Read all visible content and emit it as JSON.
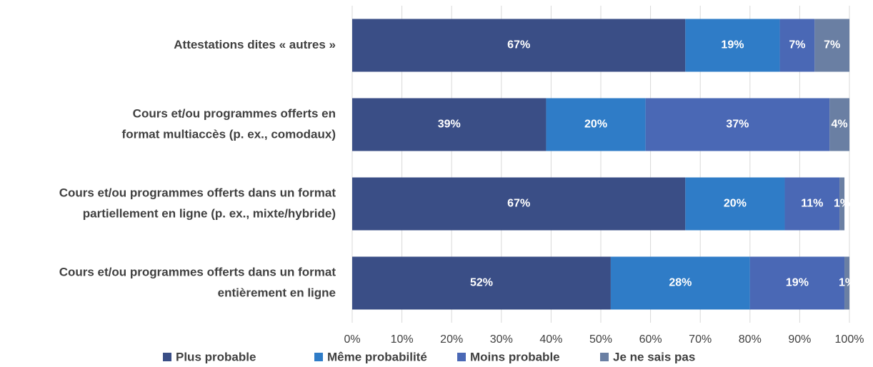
{
  "chart_data": {
    "type": "stacked-barh",
    "categories": [
      [
        "Attestations dites « autres »"
      ],
      [
        "Cours et/ou programmes offerts en",
        "format multiaccès (p. ex., comodaux)"
      ],
      [
        "Cours et/ou programmes offerts dans un format",
        "partiellement en ligne (p. ex., mixte/hybride)"
      ],
      [
        "Cours et/ou programmes offerts dans un format",
        "entièrement en ligne"
      ]
    ],
    "series": [
      {
        "name": "Plus probable",
        "color": "#3a4e86",
        "values": [
          67,
          39,
          67,
          52
        ],
        "value_labels": [
          "67%",
          "39%",
          "67%",
          "52%"
        ]
      },
      {
        "name": "Même probabilité",
        "color": "#2f7cc7",
        "values": [
          19,
          20,
          20,
          28
        ],
        "value_labels": [
          "19%",
          "20%",
          "20%",
          "28%"
        ]
      },
      {
        "name": "Moins probable",
        "color": "#4a68b5",
        "values": [
          7,
          37,
          11,
          19
        ],
        "value_labels": [
          "7%",
          "37%",
          "11%",
          "19%"
        ]
      },
      {
        "name": "Je ne sais pas",
        "color": "#6a7fa3",
        "values": [
          7,
          4,
          1,
          1
        ],
        "value_labels": [
          "7%",
          "4%",
          "1%",
          "1%"
        ]
      }
    ],
    "xlim": [
      0,
      100
    ],
    "xticks": [
      {
        "value": 0,
        "label": "0%"
      },
      {
        "value": 10,
        "label": "10%"
      },
      {
        "value": 20,
        "label": "20%"
      },
      {
        "value": 30,
        "label": "30%"
      },
      {
        "value": 40,
        "label": "40%"
      },
      {
        "value": 50,
        "label": "50%"
      },
      {
        "value": 60,
        "label": "60%"
      },
      {
        "value": 70,
        "label": "70%"
      },
      {
        "value": 80,
        "label": "80%"
      },
      {
        "value": 90,
        "label": "90%"
      },
      {
        "value": 100,
        "label": "100%"
      }
    ],
    "grid": true
  }
}
